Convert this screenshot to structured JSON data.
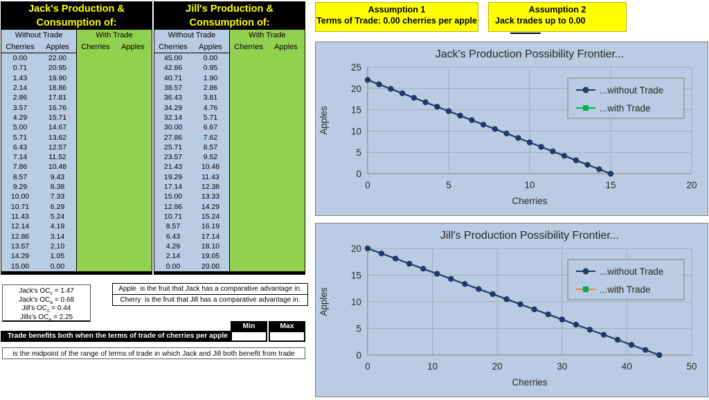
{
  "colors": {
    "cell_blue": "#b8cce4",
    "cell_green": "#92d050",
    "highlight_yellow": "#ffff00",
    "series_navy": "#1f3a68",
    "series_green": "#00b050",
    "series_orange": "#ed7d31",
    "chart_bg": "#b9cce3"
  },
  "tables": [
    {
      "title": [
        "Jack's Production &",
        "Consumption of:"
      ],
      "group_headers": [
        "Without Trade",
        "With Trade"
      ],
      "columns": [
        "Cherries",
        "Apples"
      ],
      "rows": [
        [
          "0.00",
          "22.00"
        ],
        [
          "0.71",
          "20.95"
        ],
        [
          "1.43",
          "19.90"
        ],
        [
          "2.14",
          "18.86"
        ],
        [
          "2.86",
          "17.81"
        ],
        [
          "3.57",
          "16.76"
        ],
        [
          "4.29",
          "15.71"
        ],
        [
          "5.00",
          "14.67"
        ],
        [
          "5.71",
          "13.62"
        ],
        [
          "6.43",
          "12.57"
        ],
        [
          "7.14",
          "11.52"
        ],
        [
          "7.86",
          "10.48"
        ],
        [
          "8.57",
          "9.43"
        ],
        [
          "9.29",
          "8.38"
        ],
        [
          "10.00",
          "7.33"
        ],
        [
          "10.71",
          "6.29"
        ],
        [
          "11.43",
          "5.24"
        ],
        [
          "12.14",
          "4.19"
        ],
        [
          "12.86",
          "3.14"
        ],
        [
          "13.57",
          "2.10"
        ],
        [
          "14.29",
          "1.05"
        ],
        [
          "15.00",
          "0.00"
        ]
      ]
    },
    {
      "title": [
        "Jill's Production &",
        "Consumption of:"
      ],
      "group_headers": [
        "Without Trade",
        "With Trade"
      ],
      "columns": [
        "Cherries",
        "Apples"
      ],
      "rows": [
        [
          "45.00",
          "0.00"
        ],
        [
          "42.86",
          "0.95"
        ],
        [
          "40.71",
          "1.90"
        ],
        [
          "38.57",
          "2.86"
        ],
        [
          "36.43",
          "3.81"
        ],
        [
          "34.29",
          "4.76"
        ],
        [
          "32.14",
          "5.71"
        ],
        [
          "30.00",
          "6.67"
        ],
        [
          "27.86",
          "7.62"
        ],
        [
          "25.71",
          "8.57"
        ],
        [
          "23.57",
          "9.52"
        ],
        [
          "21.43",
          "10.48"
        ],
        [
          "19.29",
          "11.43"
        ],
        [
          "17.14",
          "12.38"
        ],
        [
          "15.00",
          "13.33"
        ],
        [
          "12.86",
          "14.29"
        ],
        [
          "10.71",
          "15.24"
        ],
        [
          "8.57",
          "16.19"
        ],
        [
          "6.43",
          "17.14"
        ],
        [
          "4.29",
          "18.10"
        ],
        [
          "2.14",
          "19.05"
        ],
        [
          "0.00",
          "20.00"
        ]
      ]
    }
  ],
  "assumptions": [
    {
      "title": "Assumption 1",
      "body": "Terms of Trade: 0.00 cherries per apple"
    },
    {
      "title": "Assumption 2",
      "body": "Jack trades up to 0.00"
    }
  ],
  "oc_box": {
    "lines": [
      {
        "pre": "Jack's OC",
        "sub": "c",
        "post": " = 1.47"
      },
      {
        "pre": "Jack's OC",
        "sub": "a",
        "post": " = 0.68"
      },
      {
        "pre": "Jill's OC",
        "sub": "c",
        "post": " = 0.44"
      },
      {
        "pre": "Jills's OC",
        "sub": "a",
        "post": " = 2.25"
      }
    ]
  },
  "advantage_box": {
    "lines": [
      "Apple  is the fruit that Jack has a comparative advantage in.",
      "Cherry  is the fruit that Jill has a comparative advantage in."
    ]
  },
  "trade_range": {
    "min_label": "Min",
    "max_label": "Max",
    "min_value": "",
    "max_value": "",
    "banner": "Trade benefits both when the terms of trade of cherries per apple is between:"
  },
  "midpoint_note": "is the midpoint of the range of terms of trade in which Jack and Jill both benefit from trade",
  "chart_data": [
    {
      "type": "line",
      "title": "Jack's Production Possibility Frontier...",
      "xlabel": "Cherries",
      "ylabel": "Apples",
      "xlim": [
        0,
        20
      ],
      "xstep": 5,
      "ylim": [
        0,
        25
      ],
      "ystep": 5,
      "grid": true,
      "legend_position": "inside-right",
      "series": [
        {
          "name": "...without Trade",
          "color": "#1f3a68",
          "line_color": "#1f3a68",
          "marker": "circle",
          "x": [
            0,
            0.71,
            1.43,
            2.14,
            2.86,
            3.57,
            4.29,
            5,
            5.71,
            6.43,
            7.14,
            7.86,
            8.57,
            9.29,
            10,
            10.71,
            11.43,
            12.14,
            12.86,
            13.57,
            14.29,
            15
          ],
          "y": [
            22,
            20.95,
            19.9,
            18.86,
            17.81,
            16.76,
            15.71,
            14.67,
            13.62,
            12.57,
            11.52,
            10.48,
            9.43,
            8.38,
            7.33,
            6.29,
            5.24,
            4.19,
            3.14,
            2.1,
            1.05,
            0
          ]
        },
        {
          "name": "...with Trade",
          "color": "#00b050",
          "line_color": "#00b050",
          "marker": "square",
          "x": [],
          "y": []
        }
      ]
    },
    {
      "type": "line",
      "title": "Jill's Production Possibility Frontier...",
      "xlabel": "Cherries",
      "ylabel": "Apples",
      "xlim": [
        0,
        50
      ],
      "xstep": 10,
      "ylim": [
        0,
        20
      ],
      "ystep": 5,
      "grid": true,
      "legend_position": "inside-right",
      "series": [
        {
          "name": "...without Trade",
          "color": "#1f3a68",
          "line_color": "#1f3a68",
          "marker": "circle",
          "x": [
            45,
            42.86,
            40.71,
            38.57,
            36.43,
            34.29,
            32.14,
            30,
            27.86,
            25.71,
            23.57,
            21.43,
            19.29,
            17.14,
            15,
            12.86,
            10.71,
            8.57,
            6.43,
            4.29,
            2.14,
            0
          ],
          "y": [
            0,
            0.95,
            1.9,
            2.86,
            3.81,
            4.76,
            5.71,
            6.67,
            7.62,
            8.57,
            9.52,
            10.48,
            11.43,
            12.38,
            13.33,
            14.29,
            15.24,
            16.19,
            17.14,
            18.1,
            19.05,
            20
          ]
        },
        {
          "name": "...with Trade",
          "color": "#00b050",
          "line_color": "#ed7d31",
          "marker": "square",
          "x": [],
          "y": []
        }
      ]
    }
  ]
}
